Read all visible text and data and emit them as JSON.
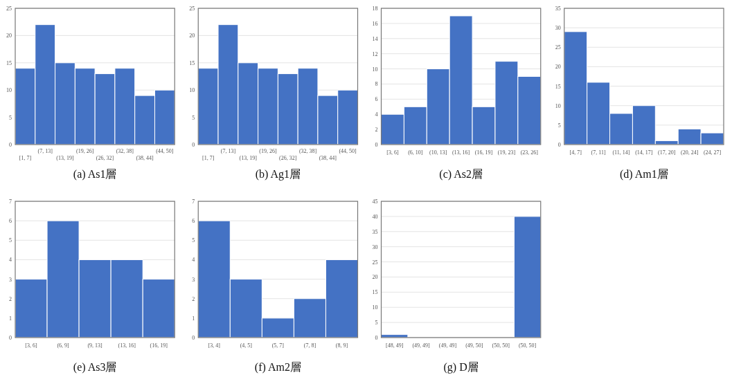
{
  "chart_data": [
    {
      "type": "bar",
      "title": "(a) As1層",
      "categories": [
        "[1, 7]",
        "(7, 13]",
        "(13, 19]",
        "(19, 26]",
        "(26, 32]",
        "(32, 38]",
        "(38, 44]",
        "(44, 50]"
      ],
      "values": [
        14,
        22,
        15,
        14,
        13,
        14,
        9,
        10
      ],
      "color": "#4472c4",
      "ylim": [
        0,
        25
      ],
      "yticks": [
        0,
        5,
        10,
        15,
        20,
        25
      ],
      "grid": "y"
    },
    {
      "type": "bar",
      "title": "(b) Ag1層",
      "categories": [
        "[1, 7]",
        "(7, 13]",
        "(13, 19]",
        "(19, 26]",
        "(26, 32]",
        "(32, 38]",
        "(38, 44]",
        "(44, 50]"
      ],
      "values": [
        14,
        22,
        15,
        14,
        13,
        14,
        9,
        10
      ],
      "color": "#4472c4",
      "ylim": [
        0,
        25
      ],
      "yticks": [
        0,
        5,
        10,
        15,
        20,
        25
      ],
      "grid": "y"
    },
    {
      "type": "bar",
      "title": "(c) As2層",
      "categories": [
        "[3, 6]",
        "(6, 10]",
        "(10, 13]",
        "(13, 16]",
        "(16, 19]",
        "(19, 23]",
        "(23, 26]"
      ],
      "values": [
        4,
        5,
        10,
        17,
        5,
        11,
        9
      ],
      "color": "#4472c4",
      "ylim": [
        0,
        18
      ],
      "yticks": [
        0,
        2,
        4,
        6,
        8,
        10,
        12,
        14,
        16,
        18
      ],
      "grid": "y"
    },
    {
      "type": "bar",
      "title": "(d) Am1層",
      "categories": [
        "[4, 7]",
        "(7, 11]",
        "(11, 14]",
        "(14, 17]",
        "(17, 20]",
        "(20, 24]",
        "(24, 27]"
      ],
      "values": [
        29,
        16,
        8,
        10,
        1,
        4,
        3
      ],
      "color": "#4472c4",
      "ylim": [
        0,
        35
      ],
      "yticks": [
        0,
        5,
        10,
        15,
        20,
        25,
        30,
        35
      ],
      "grid": "y"
    },
    {
      "type": "bar",
      "title": "(e) As3層",
      "categories": [
        "[3, 6]",
        "(6, 9]",
        "(9, 13]",
        "(13, 16]",
        "(16, 19]"
      ],
      "values": [
        3,
        6,
        4,
        4,
        3
      ],
      "color": "#4472c4",
      "ylim": [
        0,
        7
      ],
      "yticks": [
        0,
        1,
        2,
        3,
        4,
        5,
        6,
        7
      ],
      "grid": "y"
    },
    {
      "type": "bar",
      "title": "(f) Am2層",
      "categories": [
        "[3, 4]",
        "(4, 5]",
        "(5, 7]",
        "(7, 8]",
        "(8, 9]"
      ],
      "values": [
        6,
        3,
        1,
        2,
        4
      ],
      "color": "#4472c4",
      "ylim": [
        0,
        7
      ],
      "yticks": [
        0,
        1,
        2,
        3,
        4,
        5,
        6,
        7
      ],
      "grid": "y"
    },
    {
      "type": "bar",
      "title": "(g) D層",
      "categories": [
        "[48, 49]",
        "(49, 49]",
        "(49, 49]",
        "(49, 50]",
        "(50, 50]",
        "(50, 50]"
      ],
      "values": [
        1,
        0,
        0,
        0,
        0,
        40
      ],
      "color": "#4472c4",
      "ylim": [
        0,
        45
      ],
      "yticks": [
        0,
        5,
        10,
        15,
        20,
        25,
        30,
        35,
        40,
        45
      ],
      "grid": "y"
    }
  ]
}
